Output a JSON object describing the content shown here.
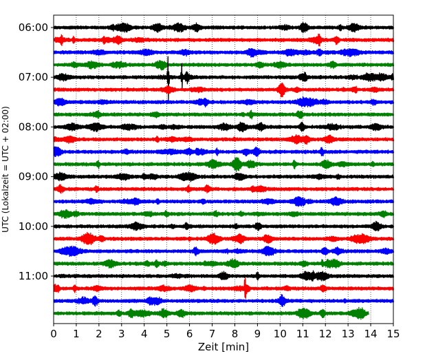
{
  "chart_data": {
    "type": "line",
    "title": "",
    "xlabel": "Zeit  [min]",
    "ylabel": "UTC (Lokalzeit = UTC + 02:00)",
    "xlim": [
      0,
      15
    ],
    "x_ticks": [
      0,
      1,
      2,
      3,
      4,
      5,
      6,
      7,
      8,
      9,
      10,
      11,
      12,
      13,
      14,
      15
    ],
    "y_tick_labels": [
      "06:00",
      "07:00",
      "08:00",
      "09:00",
      "10:00",
      "11:00"
    ],
    "grid": "vertical dotted",
    "trace_interval_min": 15,
    "trace_colors": [
      "#000000",
      "#ff0000",
      "#0000ff",
      "#008000"
    ],
    "traces": [
      {
        "start": "06:00",
        "color": "#000000",
        "end_min": 15
      },
      {
        "start": "06:15",
        "color": "#ff0000",
        "end_min": 15
      },
      {
        "start": "06:30",
        "color": "#0000ff",
        "end_min": 15
      },
      {
        "start": "06:45",
        "color": "#008000",
        "end_min": 15
      },
      {
        "start": "07:00",
        "color": "#000000",
        "end_min": 15
      },
      {
        "start": "07:15",
        "color": "#ff0000",
        "end_min": 15
      },
      {
        "start": "07:30",
        "color": "#0000ff",
        "end_min": 15
      },
      {
        "start": "07:45",
        "color": "#008000",
        "end_min": 15
      },
      {
        "start": "08:00",
        "color": "#000000",
        "end_min": 15
      },
      {
        "start": "08:15",
        "color": "#ff0000",
        "end_min": 15
      },
      {
        "start": "08:30",
        "color": "#0000ff",
        "end_min": 15
      },
      {
        "start": "08:45",
        "color": "#008000",
        "end_min": 15
      },
      {
        "start": "09:00",
        "color": "#000000",
        "end_min": 15
      },
      {
        "start": "09:15",
        "color": "#ff0000",
        "end_min": 15
      },
      {
        "start": "09:30",
        "color": "#0000ff",
        "end_min": 15
      },
      {
        "start": "09:45",
        "color": "#008000",
        "end_min": 15
      },
      {
        "start": "10:00",
        "color": "#000000",
        "end_min": 15
      },
      {
        "start": "10:15",
        "color": "#ff0000",
        "end_min": 15
      },
      {
        "start": "10:30",
        "color": "#0000ff",
        "end_min": 15
      },
      {
        "start": "10:45",
        "color": "#008000",
        "end_min": 15
      },
      {
        "start": "11:00",
        "color": "#000000",
        "end_min": 15
      },
      {
        "start": "11:15",
        "color": "#ff0000",
        "end_min": 15
      },
      {
        "start": "11:30",
        "color": "#0000ff",
        "end_min": 15
      },
      {
        "start": "11:45",
        "color": "#008000",
        "end_min": 13.9
      }
    ],
    "events": [
      {
        "trace": "07:00",
        "x": 5.05,
        "amplitude": "large"
      },
      {
        "trace": "07:00",
        "x": 5.65,
        "amplitude": "medium"
      },
      {
        "trace": "11:15",
        "x": 8.45,
        "amplitude": "medium"
      }
    ]
  }
}
